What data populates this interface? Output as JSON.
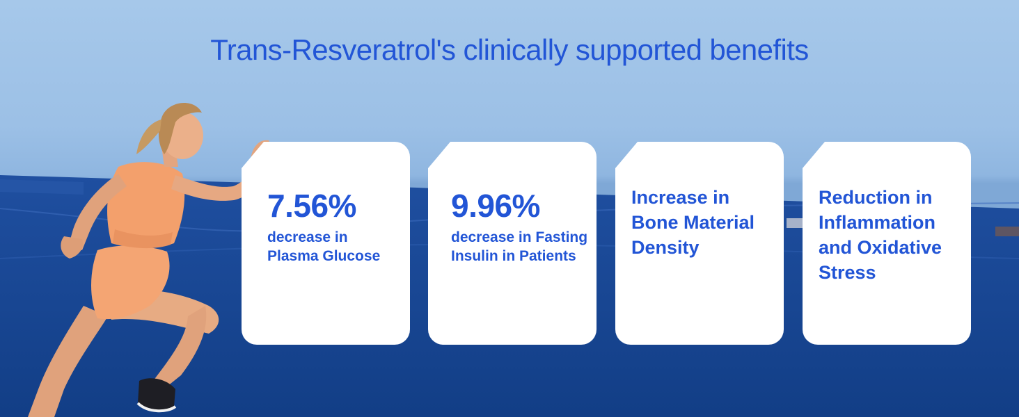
{
  "header": {
    "title": "Trans-Resveratrol's clinically supported benefits"
  },
  "cards": [
    {
      "value": "7.56%",
      "description": "decrease in Plasma Glucose"
    },
    {
      "value": "9.96%",
      "description": "decrease in Fasting Insulin in Patients"
    },
    {
      "text": "Increase in Bone Material Density"
    },
    {
      "text": "Reduction in Inflammation and Oxidative Stress"
    }
  ],
  "colors": {
    "accent": "#2255d6",
    "card_bg": "#ffffff",
    "sky": "#a6c8ea",
    "ground": "#123f88"
  }
}
